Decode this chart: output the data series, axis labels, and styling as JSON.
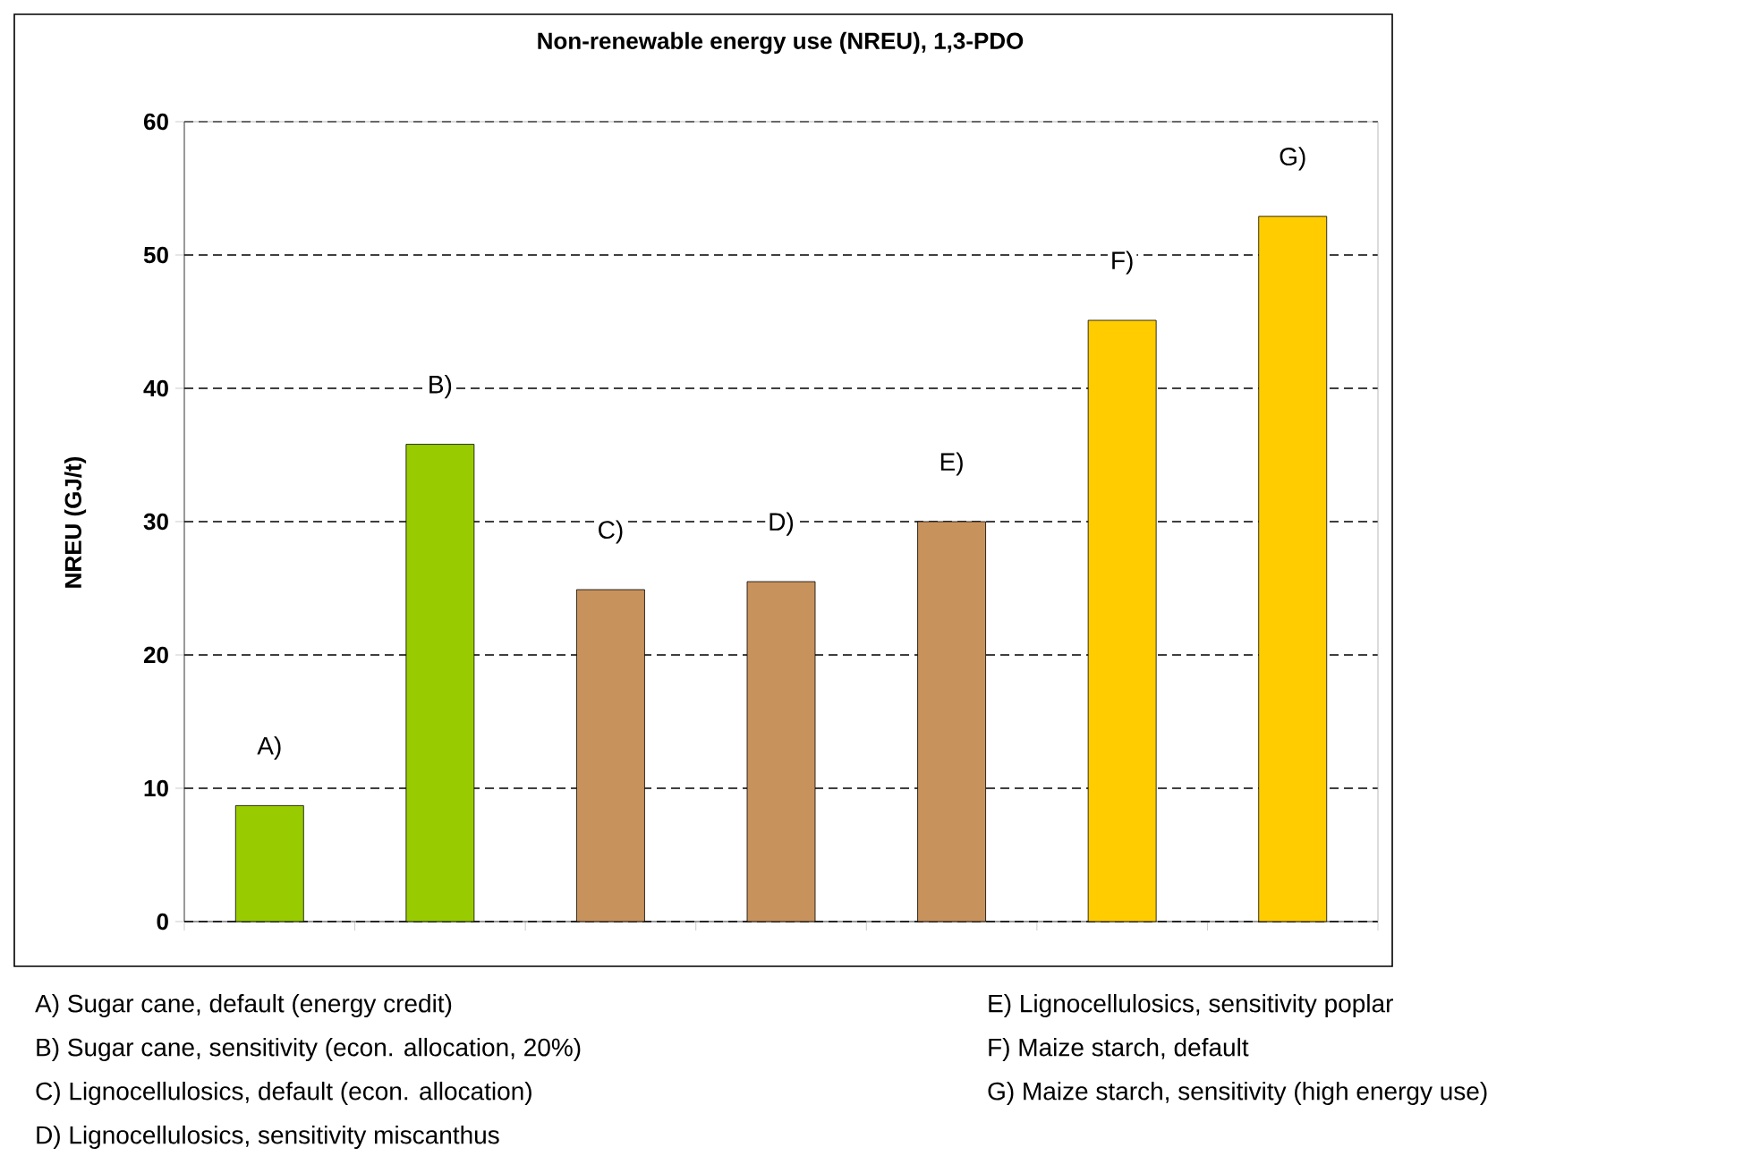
{
  "chart_data": {
    "type": "bar",
    "title": "Non-renewable energy use (NREU), 1,3-PDO",
    "ylabel": "NREU (GJ/t)",
    "categories": [
      null,
      null,
      null,
      null,
      null,
      null,
      null
    ],
    "values": [
      8.7,
      35.8,
      24.9,
      25.5,
      30.0,
      45.1,
      52.9
    ],
    "colors": [
      "#99cc00",
      "#99cc00",
      "#c8925c",
      "#c8925c",
      "#c8925c",
      "#ffcc00",
      "#ffcc00"
    ],
    "value_labels": [
      "A)",
      "B)",
      "C)",
      "D)",
      "E)",
      "F)",
      "G)"
    ],
    "ylim": [
      0,
      60
    ],
    "yticks": [
      0,
      10,
      20,
      30,
      40,
      50,
      60
    ],
    "grid": "y",
    "tick_labels": "y",
    "annotations": [
      "A)\tSugar cane, default (energy credit)",
      "B)\tSugar cane, sensitivity (econ. allocation, 20%)",
      "C)\tLignocellulosics, default (econ. allocation)",
      "D)\tLignocellulosics, sensitivity miscanthus",
      "E) Lignocellulosics, sensitivity poplar",
      "F) Maize starch, default",
      "G) Maize starch, sensitivity (high energy use)"
    ]
  }
}
